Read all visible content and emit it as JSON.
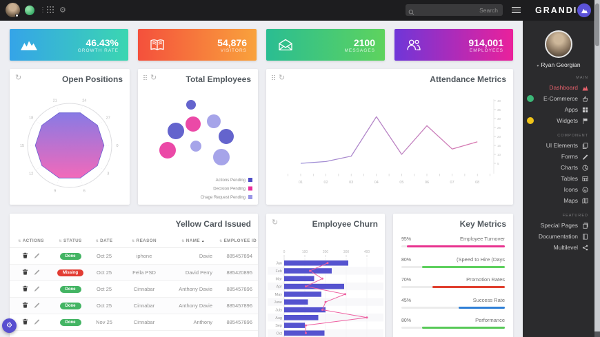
{
  "topbar": {
    "search_placeholder": "Search",
    "logo_text": "GRANDIN"
  },
  "colors": {
    "active_menu": "#e4606b",
    "topbar_bg": "#1d1d1f",
    "sidebar_bg": "#2b2b2d"
  },
  "stats": [
    {
      "icon": "area-chart-icon",
      "value": "46.43%",
      "label": "GROWTH RATE",
      "gradient": [
        "#35a4e8",
        "#3bd6b1"
      ]
    },
    {
      "icon": "open-book-icon",
      "value": "54,876",
      "label": "VISITORS",
      "gradient": [
        "#f4503c",
        "#f9a23c"
      ]
    },
    {
      "icon": "mail-open-icon",
      "value": "2100",
      "label": "MESSAGES",
      "gradient": [
        "#2abd92",
        "#5ed35e"
      ]
    },
    {
      "icon": "people-icon",
      "value": "914,001",
      "label": "EMPLOYEES",
      "gradient": [
        "#6f36d8",
        "#ea219b"
      ]
    }
  ],
  "cards": {
    "open_positions_title": "Open Positions",
    "total_employees_title": "Total Employees",
    "attendance_title": "Attendance Metrics",
    "table_title": "Yellow Card Issued",
    "churn_title": "Employee Churn",
    "key_metrics_title": "Key Metrics"
  },
  "chart_data": [
    {
      "id": "open_positions",
      "type": "radar",
      "title": "Open Positions",
      "axis_labels": [
        "0",
        "3",
        "6",
        "9",
        "12",
        "15",
        "18",
        "21",
        "24",
        "27"
      ],
      "max": 30,
      "values": [
        24,
        24,
        24,
        24,
        24,
        24,
        24,
        24,
        24,
        24
      ],
      "fill_gradient": [
        "#8273e3",
        "#f161b6"
      ]
    },
    {
      "id": "total_employees",
      "type": "bubble",
      "title": "Total Employees",
      "series": [
        {
          "name": "Actions Pending",
          "color": "#4f4ec6"
        },
        {
          "name": "Decision Pending",
          "color": "#e8309b"
        },
        {
          "name": "Chage Request Pending",
          "color": "#9a97e6"
        }
      ],
      "bubbles": [
        {
          "x": 77,
          "y": 52,
          "r": 7,
          "series": 0
        },
        {
          "x": 80,
          "y": 80,
          "r": 11,
          "series": 1
        },
        {
          "x": 110,
          "y": 76,
          "r": 10,
          "series": 2
        },
        {
          "x": 55,
          "y": 90,
          "r": 12,
          "series": 0
        },
        {
          "x": 128,
          "y": 98,
          "r": 11,
          "series": 0
        },
        {
          "x": 84,
          "y": 112,
          "r": 8,
          "series": 2
        },
        {
          "x": 43,
          "y": 118,
          "r": 12,
          "series": 1
        },
        {
          "x": 121,
          "y": 128,
          "r": 12,
          "series": 2
        }
      ]
    },
    {
      "id": "attendance",
      "type": "line",
      "title": "Attendance Metrics",
      "x": [
        "01",
        "02",
        "03",
        "04",
        "05",
        "06",
        "07",
        "08"
      ],
      "values": [
        5,
        6,
        9,
        31,
        10,
        26,
        13,
        17
      ],
      "y_ticks": [
        5,
        10,
        15,
        20,
        25,
        30,
        35,
        40
      ],
      "line_gradient": [
        "#9a8fd8",
        "#d978b0"
      ]
    },
    {
      "id": "employee_churn",
      "type": "bar+line",
      "title": "Employee Churn",
      "categories": [
        "Jan",
        "Feb",
        "Mar",
        "Apr",
        "May",
        "June",
        "July",
        "Aug",
        "Sep",
        "Oct"
      ],
      "x_ticks": [
        0,
        100,
        200,
        300,
        400
      ],
      "bar_values": [
        310,
        230,
        145,
        290,
        180,
        115,
        200,
        165,
        100,
        195
      ],
      "line_values": [
        210,
        125,
        185,
        105,
        295,
        200,
        185,
        400,
        105,
        105
      ],
      "bar_color": "#5553cf",
      "line_color": "#ee5fa0"
    },
    {
      "id": "key_metrics",
      "type": "progress",
      "title": "Key Metrics",
      "items": [
        {
          "pct": "95%",
          "value": 95,
          "label": "Employee Turnover",
          "color": "#e8328f"
        },
        {
          "pct": "80%",
          "value": 80,
          "label": "(Speed to Hire (Days",
          "color": "#5ed05e"
        },
        {
          "pct": "70%",
          "value": 70,
          "label": "Promotion Rates",
          "color": "#e0402f"
        },
        {
          "pct": "45%",
          "value": 45,
          "label": "Success Rate",
          "color": "#2f7fd6"
        },
        {
          "pct": "80%",
          "value": 80,
          "label": "Performance",
          "color": "#57c957"
        }
      ]
    }
  ],
  "table": {
    "columns": [
      "ACTIONS",
      "STATUS",
      "DATE",
      "REASON",
      "NAME",
      "EMPLOYEE ID"
    ],
    "sorted_column": "NAME",
    "rows": [
      {
        "status": "Done",
        "status_color": "#43b463",
        "date": "Oct 25",
        "reason": "iphone",
        "name": "Davie",
        "employee_id": "885457894"
      },
      {
        "status": "Missing",
        "status_color": "#e23c33",
        "date": "Oct 25",
        "reason": "Fella PSD",
        "name": "David Perry",
        "employee_id": "885420895"
      },
      {
        "status": "Done",
        "status_color": "#43b463",
        "date": "Oct 25",
        "reason": "Cinnabar",
        "name": "Anthony Davie",
        "employee_id": "885457896"
      },
      {
        "status": "Done",
        "status_color": "#43b463",
        "date": "Oct 25",
        "reason": "Cinnabar",
        "name": "Anthony Davie",
        "employee_id": "885457896"
      },
      {
        "status": "Done",
        "status_color": "#43b463",
        "date": "Nov 25",
        "reason": "Cinnabar",
        "name": "Anthony",
        "employee_id": "885457896"
      }
    ]
  },
  "sidebar": {
    "user_name": "Ryan Georgian",
    "sections": [
      {
        "label": "MAIN",
        "items": [
          {
            "label": "Dashboard",
            "icon": "area-chart-icon",
            "active": true
          },
          {
            "label": "E-Commerce",
            "icon": "basket-icon",
            "badge_color": "#3cb878"
          },
          {
            "label": "Apps",
            "icon": "grid-icon"
          },
          {
            "label": "Widgets",
            "icon": "flag-icon",
            "badge_color": "#f0c419"
          }
        ]
      },
      {
        "label": "COMPONENT",
        "items": [
          {
            "label": "UI Elements",
            "icon": "copy-icon"
          },
          {
            "label": "Forms",
            "icon": "pencil-icon"
          },
          {
            "label": "Charts",
            "icon": "pie-chart-icon"
          },
          {
            "label": "Tables",
            "icon": "table-icon"
          },
          {
            "label": "Icons",
            "icon": "icons-icon"
          },
          {
            "label": "Maps",
            "icon": "map-icon"
          }
        ]
      },
      {
        "label": "FEATURED",
        "items": [
          {
            "label": "Special Pages",
            "icon": "pages-icon"
          },
          {
            "label": "Documentation",
            "icon": "book-icon"
          },
          {
            "label": "Multilevel",
            "icon": "share-icon"
          }
        ]
      }
    ]
  }
}
